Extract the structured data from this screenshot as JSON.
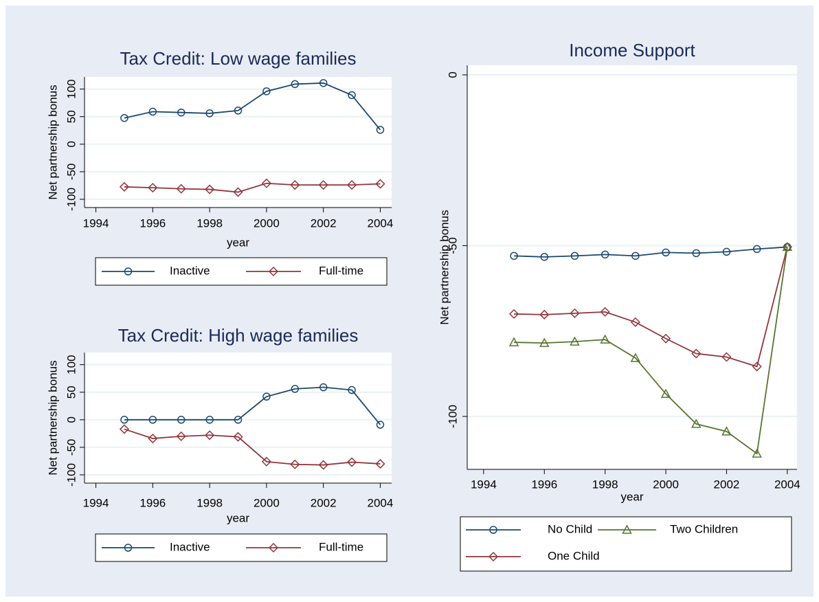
{
  "chart_data": [
    {
      "type": "line",
      "title": "Tax Credit: Low wage families",
      "xlabel": "year",
      "ylabel": "Net partnership bonus",
      "x": [
        1995,
        1996,
        1997,
        1998,
        1999,
        2000,
        2001,
        2002,
        2003,
        2004
      ],
      "series": [
        {
          "name": "Inactive",
          "color": "#1a476f",
          "marker": "circle",
          "values": [
            47.5,
            59,
            57.5,
            56,
            61,
            96,
            109,
            111,
            89,
            26
          ]
        },
        {
          "name": "Full-time",
          "color": "#90353b",
          "marker": "diamond",
          "values": [
            -77.5,
            -79,
            -81,
            -82,
            -87,
            -71,
            -74,
            -74,
            -74,
            -72
          ]
        }
      ],
      "xlim": [
        1993.6,
        2004.4
      ],
      "xticks": [
        1994,
        1996,
        1998,
        2000,
        2002,
        2004
      ],
      "ylim": [
        -115,
        122
      ],
      "yticks": [
        -100,
        -50,
        0,
        50,
        100
      ],
      "grid": true,
      "legend": "bottom"
    },
    {
      "type": "line",
      "title": "Tax Credit: High wage families",
      "xlabel": "year",
      "ylabel": "Net partnership bonus",
      "x": [
        1995,
        1996,
        1997,
        1998,
        1999,
        2000,
        2001,
        2002,
        2003,
        2004
      ],
      "series": [
        {
          "name": "Inactive",
          "color": "#1a476f",
          "marker": "circle",
          "values": [
            0,
            0,
            0,
            0,
            0,
            42,
            56,
            59,
            54,
            -9
          ]
        },
        {
          "name": "Full-time",
          "color": "#90353b",
          "marker": "diamond",
          "values": [
            -17,
            -34,
            -30,
            -28,
            -31,
            -76,
            -81,
            -82,
            -77,
            -80
          ]
        }
      ],
      "xlim": [
        1993.6,
        2004.4
      ],
      "xticks": [
        1994,
        1996,
        1998,
        2000,
        2002,
        2004
      ],
      "ylim": [
        -115,
        122
      ],
      "yticks": [
        -100,
        -50,
        0,
        50,
        100
      ],
      "grid": true,
      "legend": "bottom"
    },
    {
      "type": "line",
      "title": "Income Support",
      "xlabel": "year",
      "ylabel": "Net partnership bonus",
      "x": [
        1995,
        1996,
        1997,
        1998,
        1999,
        2000,
        2001,
        2002,
        2003,
        2004
      ],
      "series": [
        {
          "name": "No Child",
          "color": "#1a476f",
          "marker": "circle",
          "values": [
            -53,
            -53.3,
            -53,
            -52.6,
            -53,
            -52,
            -52.2,
            -51.8,
            -51,
            -50.4
          ]
        },
        {
          "name": "One Child",
          "color": "#90353b",
          "marker": "diamond",
          "values": [
            -70,
            -70.2,
            -69.8,
            -69.4,
            -72.4,
            -77.2,
            -81.6,
            -82.6,
            -85.4,
            -50.4
          ]
        },
        {
          "name": "Two Children",
          "color": "#55752f",
          "marker": "triangle",
          "values": [
            -78.3,
            -78.5,
            -78.1,
            -77.5,
            -82.9,
            -93.4,
            -102.2,
            -104.4,
            -110.9,
            -50.4
          ]
        }
      ],
      "xlim": [
        1993.46,
        2004.32
      ],
      "xticks": [
        1994,
        1996,
        1998,
        2000,
        2002,
        2004
      ],
      "ylim": [
        -115.5,
        2.8
      ],
      "yticks": [
        -100,
        -50,
        0
      ],
      "grid": true,
      "legend": "bottom"
    }
  ]
}
